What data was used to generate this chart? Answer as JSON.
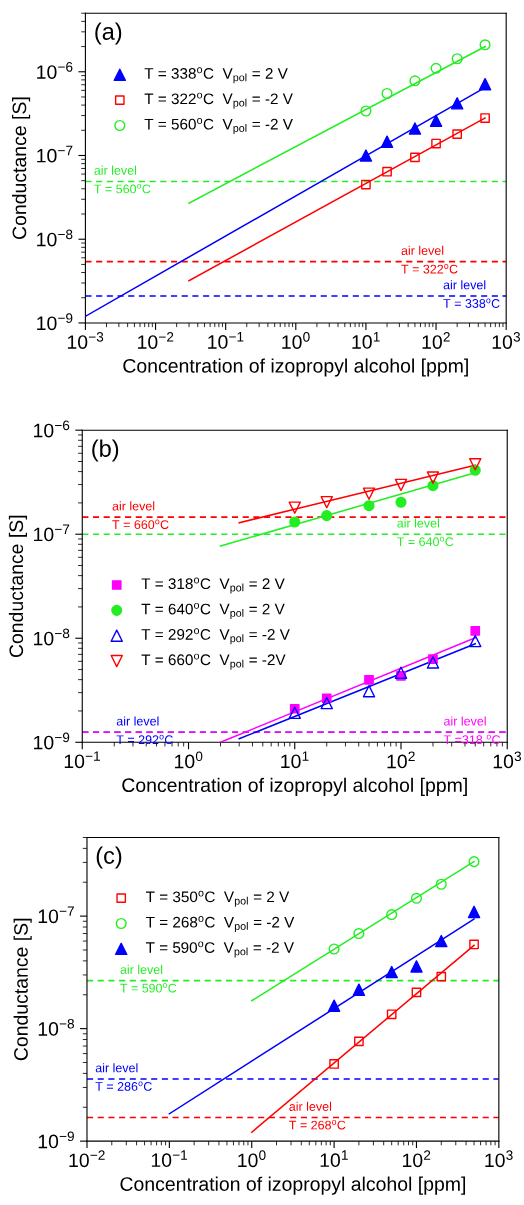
{
  "chart_data": [
    {
      "type": "scatter",
      "annotations": [
        "(a)",
        "air level\nT = 560$^{o}$C",
        "air level\nT = 322$^{o}$C",
        "air level\nT = 338$^{o}$C"
      ],
      "xlabel": "Concentration of izopropyl alcohol [ppm]",
      "ylabel": "Conductance [S]",
      "log": "xy",
      "xlim": [
        0.001,
        1000
      ],
      "ylim": [
        1e-09,
        5e-06
      ],
      "xticks": [
        {
          "value": 0.001,
          "label": "10$^{−3}$"
        },
        {
          "value": 0.01,
          "label": "10$^{−2}$"
        },
        {
          "value": 0.1,
          "label": "10$^{−1}$"
        },
        {
          "value": 1,
          "label": "10$^{0}$"
        },
        {
          "value": 10,
          "label": "10$^{1}$"
        },
        {
          "value": 100,
          "label": "10$^{2}$"
        },
        {
          "value": 1000,
          "label": "10$^{3}$"
        }
      ],
      "yticks": [
        {
          "value": 1e-09,
          "label": "10$^{−9}$"
        },
        {
          "value": 1e-08,
          "label": "10$^{−8}$"
        },
        {
          "value": 1e-07,
          "label": "10$^{−7}$"
        },
        {
          "value": 1e-06,
          "label": "10$^{−6}$"
        }
      ],
      "legend": "upper left",
      "grid": false,
      "series": [
        {
          "name": "T = 338$^{o}$C  V$_{pol}$ = 2 V",
          "color": "#0000ff",
          "marker": "triangle",
          "x": [
            10,
            20,
            50,
            100,
            200,
            500
          ],
          "values": [
            1e-07,
            1.46e-07,
            2.1e-07,
            2.6e-07,
            4.2e-07,
            7.1e-07
          ]
        },
        {
          "name": "T = 322$^{o}$C  V$_{pol}$ = -2 V",
          "color": "#ff0000",
          "marker": "square-open",
          "x": [
            10,
            20,
            50,
            100,
            200,
            500
          ],
          "values": [
            4.5e-08,
            6.4e-08,
            9.5e-08,
            1.39e-07,
            1.8e-07,
            2.8e-07
          ]
        },
        {
          "name": "T = 560$^{o}$C  V$_{pol}$ = -2 V",
          "color": "#22ee22",
          "marker": "circle-open",
          "x": [
            10,
            20,
            50,
            100,
            200,
            500
          ],
          "values": [
            3.4e-07,
            5.5e-07,
            7.8e-07,
            1.1e-06,
            1.43e-06,
            2.1e-06
          ]
        },
        {
          "type": "line",
          "color": "#0000ff",
          "x": [
            0.001,
            500
          ],
          "values": [
            1.2e-09,
            6.5e-07
          ]
        },
        {
          "type": "line",
          "color": "#ff0000",
          "x": [
            0.03,
            500
          ],
          "values": [
            3.2e-09,
            2.8e-07
          ]
        },
        {
          "type": "line",
          "color": "#22ee22",
          "x": [
            0.03,
            500
          ],
          "values": [
            2.7e-08,
            2e-06
          ]
        }
      ],
      "ref_lines": [
        {
          "axis": "y",
          "value": 4.9e-08,
          "color": "#22ee22",
          "line_style": "dashed"
        },
        {
          "axis": "y",
          "value": 5.4e-09,
          "color": "#ff0000",
          "line_style": "dashed"
        },
        {
          "axis": "y",
          "value": 2.1e-09,
          "color": "#0000ff",
          "line_style": "dashed"
        }
      ]
    },
    {
      "type": "scatter",
      "annotations": [
        "(b)",
        "air level\nT = 660$^{o}$C",
        "air level\nT = 640$^{o}$C",
        "air level\nT = 292$^{o}$C",
        "air level\nT =318 $^{o}$C"
      ],
      "xlabel": "Concentration of izopropyl alcohol [ppm]",
      "ylabel": "Conductance [S]",
      "log": "xy",
      "xlim": [
        0.1,
        1000
      ],
      "ylim": [
        1e-09,
        1e-06
      ],
      "xticks": [
        {
          "value": 0.1,
          "label": "10$^{−1}$"
        },
        {
          "value": 1,
          "label": "10$^{0}$"
        },
        {
          "value": 10,
          "label": "10$^{1}$"
        },
        {
          "value": 100,
          "label": "10$^{2}$"
        },
        {
          "value": 1000,
          "label": "10$^{3}$"
        }
      ],
      "yticks": [
        {
          "value": 1e-09,
          "label": "10$^{−9}$"
        },
        {
          "value": 1e-08,
          "label": "10$^{−8}$"
        },
        {
          "value": 1e-07,
          "label": "10$^{−7}$"
        },
        {
          "value": 1e-06,
          "label": "10$^{−6}$"
        }
      ],
      "legend": "center left",
      "grid": false,
      "series": [
        {
          "name": "T = 318$^{o}$C  V$_{pol}$ = 2 V",
          "color": "#ff00ff",
          "marker": "square",
          "x": [
            10,
            20,
            50,
            100,
            200,
            500
          ],
          "values": [
            2.1e-09,
            2.65e-09,
            3.98e-09,
            4.35e-09,
            6.3e-09,
            1.18e-08
          ]
        },
        {
          "name": "T = 640$^{o}$C  V$_{pol}$ = 2 V",
          "color": "#22ee22",
          "marker": "circle",
          "x": [
            10,
            20,
            50,
            100,
            200,
            500
          ],
          "values": [
            1.31e-07,
            1.51e-07,
            1.88e-07,
            2.03e-07,
            2.93e-07,
            4.12e-07
          ]
        },
        {
          "name": "T = 292$^{o}$C  V$_{pol}$ = -2 V",
          "color": "#0000ff",
          "marker": "triangle-open",
          "x": [
            10,
            20,
            50,
            100,
            200,
            500
          ],
          "values": [
            1.92e-09,
            2.38e-09,
            3.1e-09,
            4.66e-09,
            5.85e-09,
            9.4e-09
          ]
        },
        {
          "name": "T = 660$^{o}$C  V$_{pol}$ = -2V",
          "color": "#ff0000",
          "marker": "triangle-down-open",
          "x": [
            10,
            20,
            50,
            100,
            200,
            500
          ],
          "values": [
            1.8e-07,
            2.03e-07,
            2.45e-07,
            2.98e-07,
            3.5e-07,
            4.7e-07
          ]
        },
        {
          "type": "line",
          "color": "#ff00ff",
          "x": [
            2,
            500
          ],
          "values": [
            1e-09,
            1.01e-08
          ]
        },
        {
          "type": "line",
          "color": "#22ee22",
          "x": [
            2,
            500
          ],
          "values": [
            7.7e-08,
            3.9e-07
          ]
        },
        {
          "type": "line",
          "color": "#0000ff",
          "x": [
            3,
            500
          ],
          "values": [
            1.08e-09,
            8.85e-09
          ]
        },
        {
          "type": "line",
          "color": "#ff0000",
          "x": [
            3,
            500
          ],
          "values": [
            1.29e-07,
            4.6e-07
          ]
        }
      ],
      "ref_lines": [
        {
          "axis": "y",
          "value": 1.46e-07,
          "color": "#ff0000",
          "line_style": "dashed"
        },
        {
          "axis": "y",
          "value": 1e-07,
          "color": "#22ee22",
          "line_style": "dashed"
        },
        {
          "axis": "y",
          "value": 1.25e-09,
          "color": "#0000ff",
          "line_style": "dashed"
        },
        {
          "axis": "y",
          "value": 1.25e-09,
          "color": "#ff00ff",
          "line_style": "dashed"
        }
      ]
    },
    {
      "type": "scatter",
      "annotations": [
        "(c)",
        "air level\nT = 590$^{o}$C",
        "air level\nT = 286$^{o}$C",
        "air level\nT = 268$^{o}$C"
      ],
      "xlabel": "Concentration of izopropyl alcohol [ppm]",
      "ylabel": "Conductance [S]",
      "log": "xy",
      "xlim": [
        0.01,
        1000
      ],
      "ylim": [
        1e-09,
        5e-07
      ],
      "xticks": [
        {
          "value": 0.01,
          "label": "10$^{−2}$"
        },
        {
          "value": 0.1,
          "label": "10$^{−1}$"
        },
        {
          "value": 1,
          "label": "10$^{0}$"
        },
        {
          "value": 10,
          "label": "10$^{1}$"
        },
        {
          "value": 100,
          "label": "10$^{2}$"
        },
        {
          "value": 1000,
          "label": "10$^{3}$"
        }
      ],
      "yticks": [
        {
          "value": 1e-09,
          "label": "10$^{−9}$"
        },
        {
          "value": 1e-08,
          "label": "10$^{−8}$"
        },
        {
          "value": 1e-07,
          "label": "10$^{−7}$"
        }
      ],
      "legend": "upper left",
      "grid": false,
      "series": [
        {
          "name": "T = 350$^{o}$C  V$_{pol}$ = 2 V",
          "color": "#ff0000",
          "marker": "square-open",
          "x": [
            10,
            20,
            50,
            100,
            200,
            500
          ],
          "values": [
            4.85e-09,
            7.7e-09,
            1.34e-08,
            2.1e-08,
            2.9e-08,
            5.6e-08
          ]
        },
        {
          "name": "T = 268$^{o}$C  V$_{pol}$ = -2 V",
          "color": "#22ee22",
          "marker": "circle-open",
          "x": [
            10,
            20,
            50,
            100,
            200,
            500
          ],
          "values": [
            5.1e-08,
            7e-08,
            1.03e-07,
            1.44e-07,
            1.92e-07,
            3.05e-07
          ]
        },
        {
          "name": "T = 590$^{o}$C  V$_{pol}$ = -2 V",
          "color": "#0000ff",
          "marker": "triangle",
          "x": [
            10,
            20,
            50,
            100,
            200,
            500
          ],
          "values": [
            1.6e-08,
            2.22e-08,
            3.18e-08,
            3.57e-08,
            6e-08,
            1.09e-07
          ]
        },
        {
          "type": "line",
          "color": "#ff0000",
          "x": [
            1,
            500
          ],
          "values": [
            1.2e-09,
            5.5e-08
          ]
        },
        {
          "type": "line",
          "color": "#22ee22",
          "x": [
            1,
            500
          ],
          "values": [
            1.77e-08,
            3.05e-07
          ]
        },
        {
          "type": "line",
          "color": "#0000ff",
          "x": [
            0.1,
            500
          ],
          "values": [
            1.75e-09,
            9.4e-08
          ]
        }
      ],
      "ref_lines": [
        {
          "axis": "y",
          "value": 2.67e-08,
          "color": "#22ee22",
          "line_style": "dashed"
        },
        {
          "axis": "y",
          "value": 3.57e-09,
          "color": "#0000ff",
          "line_style": "dashed"
        },
        {
          "axis": "y",
          "value": 1.62e-09,
          "color": "#ff0000",
          "line_style": "dashed"
        }
      ]
    }
  ]
}
